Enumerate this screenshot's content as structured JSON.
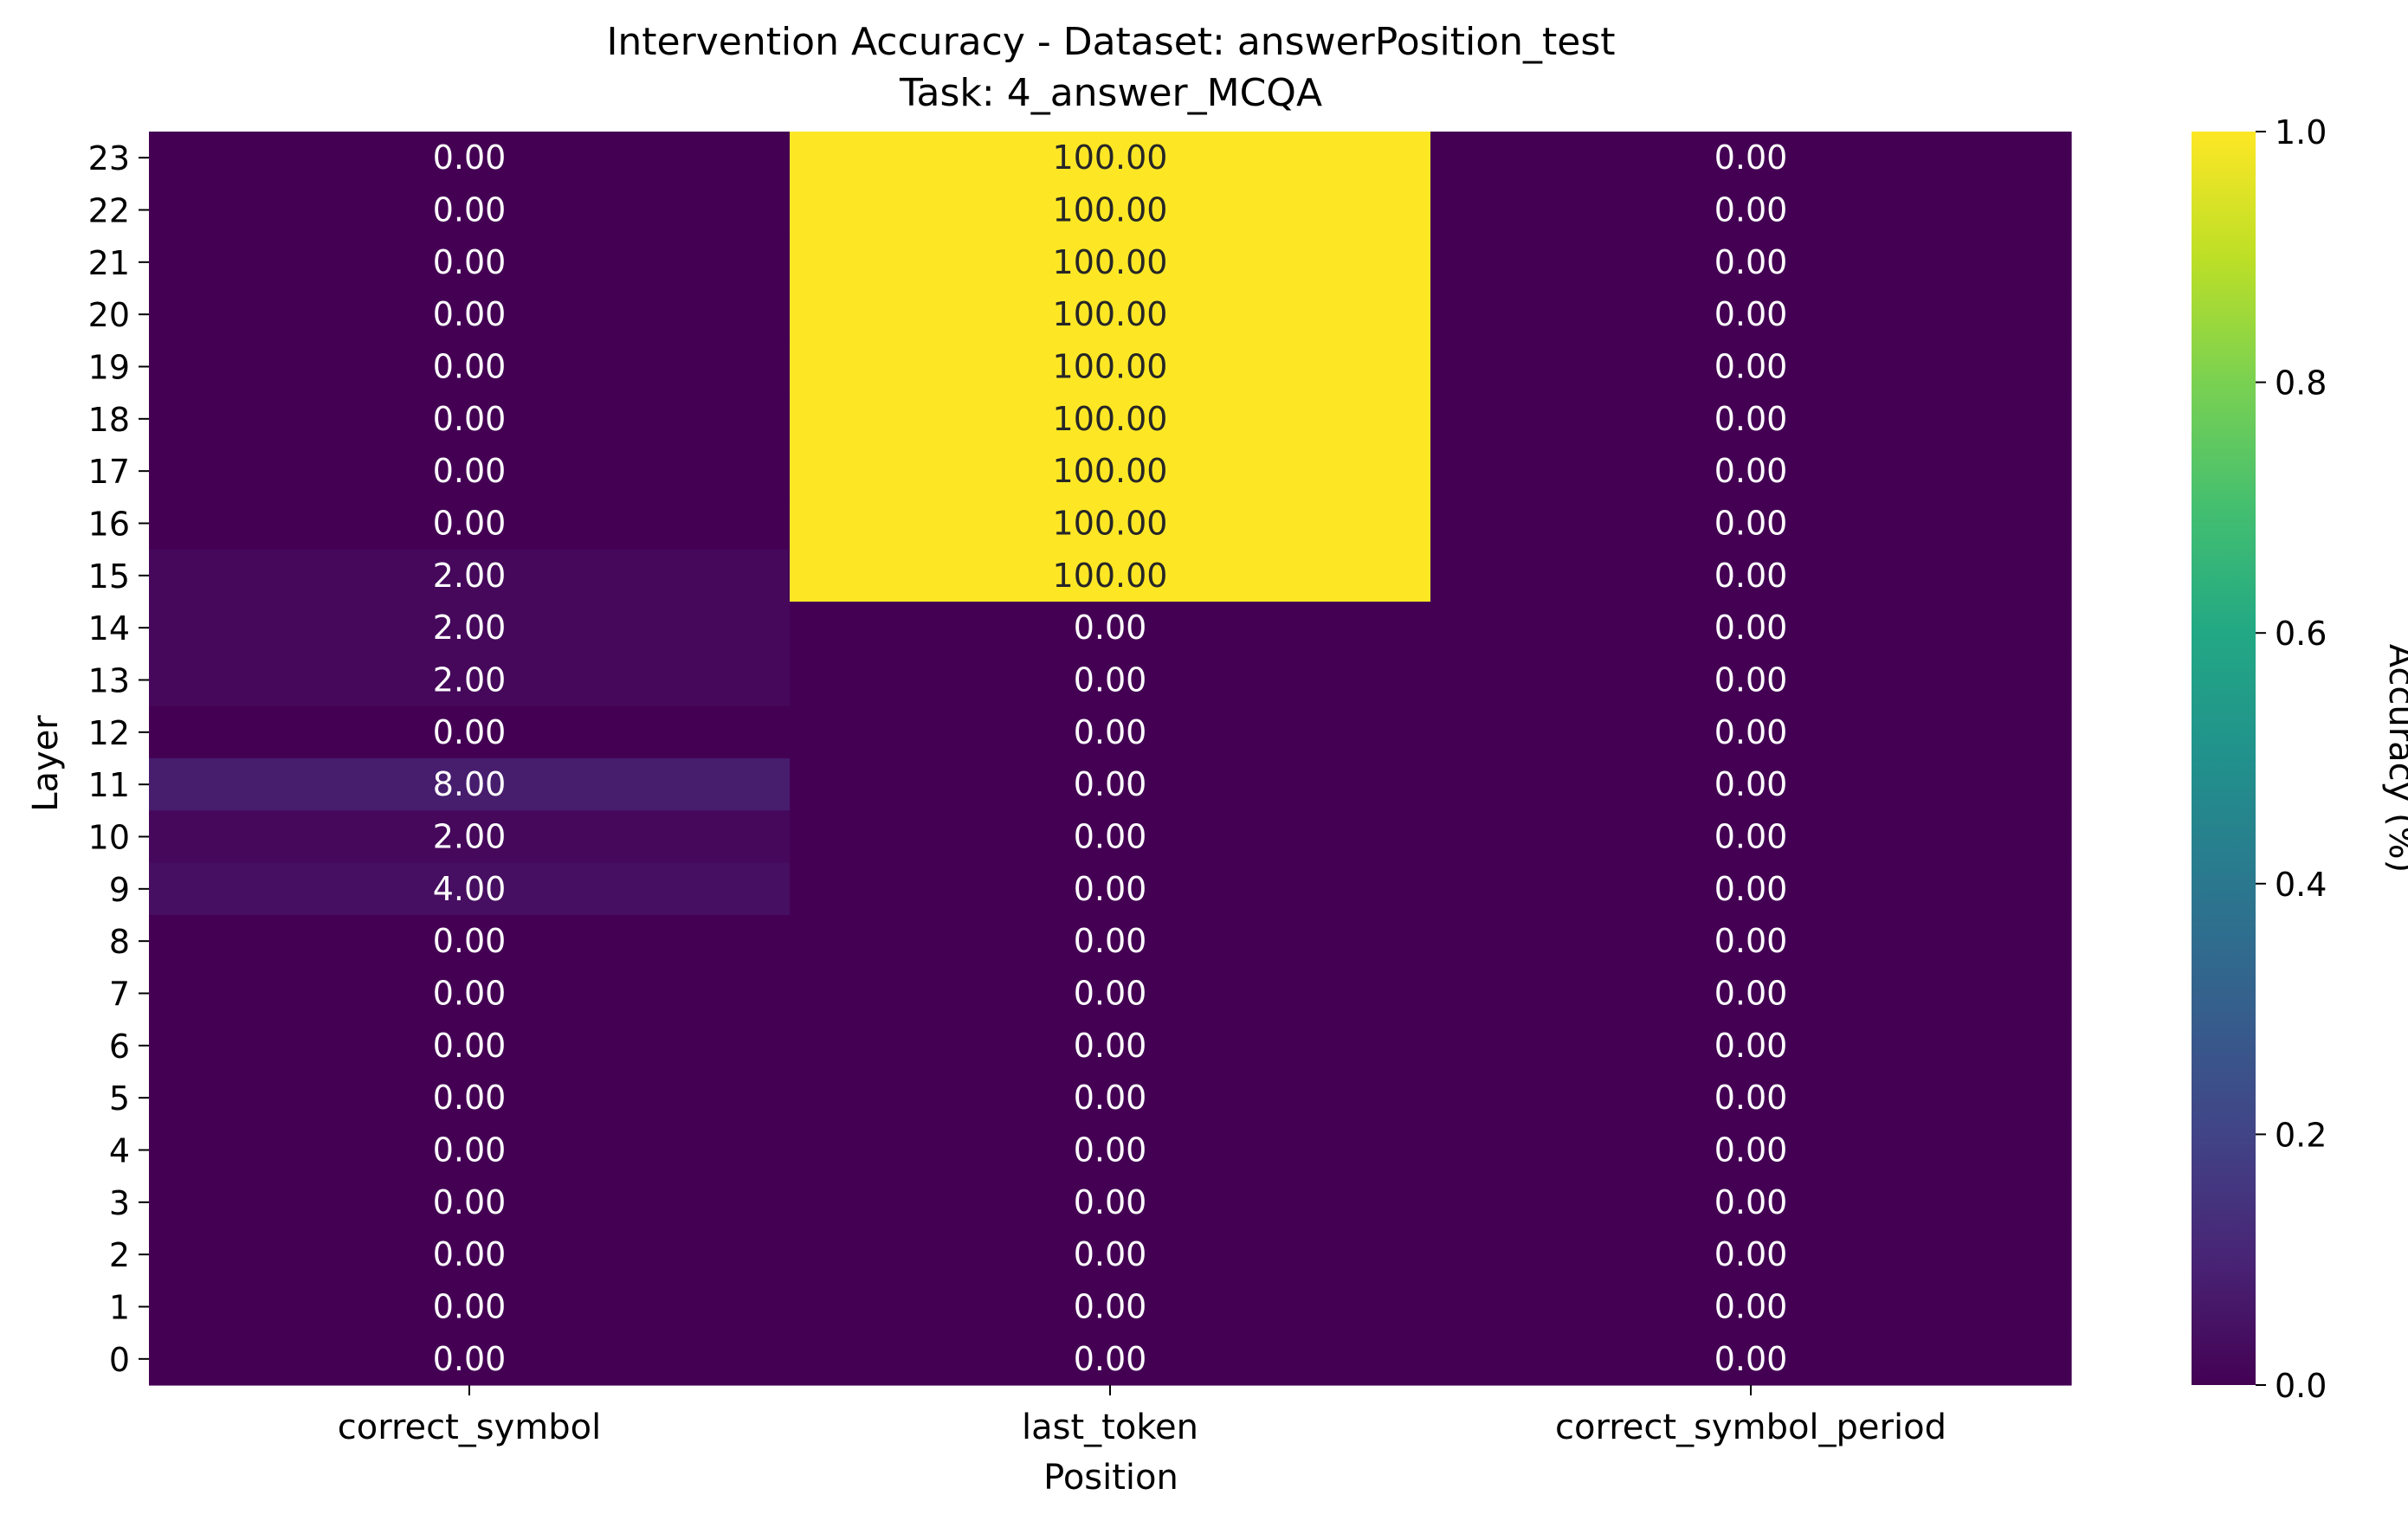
{
  "chart_data": {
    "type": "heatmap",
    "title": "Intervention Accuracy - Dataset: answerPosition_test",
    "subtitle": "Task: 4_answer_MCQA",
    "xlabel": "Position",
    "ylabel": "Layer",
    "x_categories": [
      "correct_symbol",
      "last_token",
      "correct_symbol_period"
    ],
    "y_categories": [
      "23",
      "22",
      "21",
      "20",
      "19",
      "18",
      "17",
      "16",
      "15",
      "14",
      "13",
      "12",
      "11",
      "10",
      "9",
      "8",
      "7",
      "6",
      "5",
      "4",
      "3",
      "2",
      "1",
      "0"
    ],
    "values": [
      [
        0,
        1,
        0
      ],
      [
        0,
        1,
        0
      ],
      [
        0,
        1,
        0
      ],
      [
        0,
        1,
        0
      ],
      [
        0,
        1,
        0
      ],
      [
        0,
        1,
        0
      ],
      [
        0,
        1,
        0
      ],
      [
        0,
        1,
        0
      ],
      [
        0.02,
        1,
        0
      ],
      [
        0.02,
        0,
        0
      ],
      [
        0.02,
        0,
        0
      ],
      [
        0,
        0,
        0
      ],
      [
        0.08,
        0,
        0
      ],
      [
        0.02,
        0,
        0
      ],
      [
        0.04,
        0,
        0
      ],
      [
        0,
        0,
        0
      ],
      [
        0,
        0,
        0
      ],
      [
        0,
        0,
        0
      ],
      [
        0,
        0,
        0
      ],
      [
        0,
        0,
        0
      ],
      [
        0,
        0,
        0
      ],
      [
        0,
        0,
        0
      ],
      [
        0,
        0,
        0
      ],
      [
        0,
        0,
        0
      ]
    ],
    "annotations": [
      [
        "0.00",
        "100.00",
        "0.00"
      ],
      [
        "0.00",
        "100.00",
        "0.00"
      ],
      [
        "0.00",
        "100.00",
        "0.00"
      ],
      [
        "0.00",
        "100.00",
        "0.00"
      ],
      [
        "0.00",
        "100.00",
        "0.00"
      ],
      [
        "0.00",
        "100.00",
        "0.00"
      ],
      [
        "0.00",
        "100.00",
        "0.00"
      ],
      [
        "0.00",
        "100.00",
        "0.00"
      ],
      [
        "2.00",
        "100.00",
        "0.00"
      ],
      [
        "2.00",
        "0.00",
        "0.00"
      ],
      [
        "2.00",
        "0.00",
        "0.00"
      ],
      [
        "0.00",
        "0.00",
        "0.00"
      ],
      [
        "8.00",
        "0.00",
        "0.00"
      ],
      [
        "2.00",
        "0.00",
        "0.00"
      ],
      [
        "4.00",
        "0.00",
        "0.00"
      ],
      [
        "0.00",
        "0.00",
        "0.00"
      ],
      [
        "0.00",
        "0.00",
        "0.00"
      ],
      [
        "0.00",
        "0.00",
        "0.00"
      ],
      [
        "0.00",
        "0.00",
        "0.00"
      ],
      [
        "0.00",
        "0.00",
        "0.00"
      ],
      [
        "0.00",
        "0.00",
        "0.00"
      ],
      [
        "0.00",
        "0.00",
        "0.00"
      ],
      [
        "0.00",
        "0.00",
        "0.00"
      ],
      [
        "0.00",
        "0.00",
        "0.00"
      ]
    ],
    "colorbar": {
      "label": "Accuracy (%)",
      "range": [
        0,
        1
      ],
      "ticks": [
        "0.0",
        "0.2",
        "0.4",
        "0.6",
        "0.8",
        "1.0"
      ],
      "colormap": "viridis"
    },
    "grid": false
  }
}
